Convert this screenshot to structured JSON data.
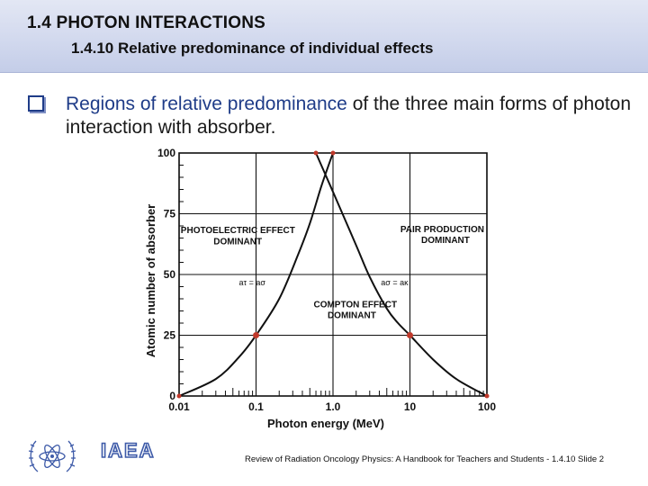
{
  "slide": {
    "title": "1.4  PHOTON INTERACTIONS",
    "subtitle": "1.4.10 Relative predominance of individual effects",
    "body_highlight": "Regions of relative predominance",
    "body_rest": " of the three main forms of photon interaction with absorber.",
    "footer": "Review of Radiation Oncology Physics: A Handbook for Teachers and Students - 1.4.10 Slide 2",
    "logo_text": "IAEA",
    "logo_icon": "iaea-emblem-icon",
    "colors": {
      "header_bg": "#d2d9ee",
      "bullet": "#1f3c88",
      "highlight": "#1f3c88",
      "point_red": "#c0392b"
    }
  },
  "chart_data": {
    "type": "line",
    "xscale": "log",
    "xlim": [
      0.01,
      100
    ],
    "ylim": [
      0,
      100
    ],
    "x_ticks": [
      "0.01",
      "0.1",
      "1.0",
      "10",
      "100"
    ],
    "y_ticks": [
      "0",
      "25",
      "50",
      "75",
      "100"
    ],
    "xlabel": "Photon energy (MeV)",
    "ylabel": "Atomic number of absorber",
    "grid": true,
    "series": [
      {
        "name": "",
        "x": [
          0.01,
          0.03,
          0.06,
          0.1,
          0.2,
          0.35,
          0.5,
          0.7,
          0.9,
          1.0
        ],
        "y": [
          0,
          7,
          16,
          25,
          40,
          58,
          71,
          86,
          96,
          100
        ]
      },
      {
        "name": "",
        "x": [
          0.6,
          1.0,
          2.0,
          3.0,
          5.0,
          7.0,
          10,
          20,
          40,
          100
        ],
        "y": [
          100,
          84,
          62,
          49,
          36,
          30,
          25,
          15,
          7,
          0
        ]
      }
    ],
    "marked_points": [
      {
        "x": 0.01,
        "y": 0
      },
      {
        "x": 0.1,
        "y": 25
      },
      {
        "x": 1.0,
        "y": 100
      },
      {
        "x": 0.6,
        "y": 100
      },
      {
        "x": 10,
        "y": 25
      },
      {
        "x": 100,
        "y": 0
      }
    ],
    "annotations": [
      {
        "text": "PHOTOELECTRIC EFFECT",
        "x": 0.0105,
        "y": 67
      },
      {
        "text": "DOMINANT",
        "x": 0.028,
        "y": 62.5
      },
      {
        "text": "PAIR PRODUCTION",
        "x": 7.5,
        "y": 67.5
      },
      {
        "text": "DOMINANT",
        "x": 14,
        "y": 63
      },
      {
        "text": "COMPTON EFFECT",
        "x": 0.56,
        "y": 36.5
      },
      {
        "text": "DOMINANT",
        "x": 0.85,
        "y": 32
      },
      {
        "text": "aτ = aσ",
        "x": 0.06,
        "y": 45.5
      },
      {
        "text": "aσ = aκ",
        "x": 4.2,
        "y": 45.5
      }
    ]
  }
}
